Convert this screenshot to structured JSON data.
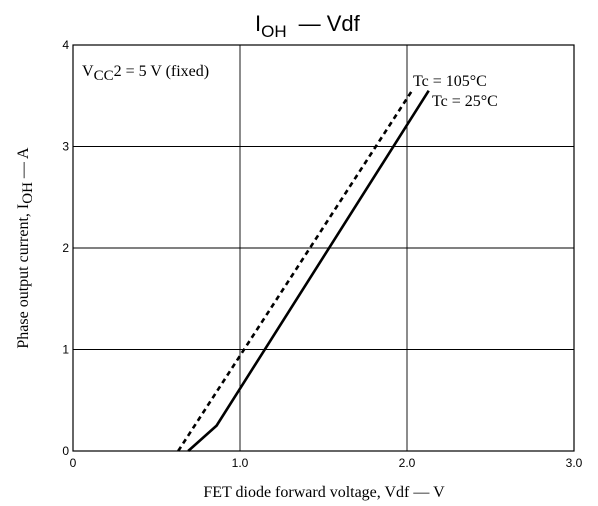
{
  "chart_data": {
    "type": "line",
    "title": {
      "main": "I",
      "sub": "OH",
      "rest": "— Vdf"
    },
    "xlabel": "FET diode forward voltage, Vdf — V",
    "ylabel": {
      "pre": "Phase output current, I",
      "sub": "OH",
      "post": " — A"
    },
    "xlim": [
      0,
      3.0
    ],
    "ylim": [
      0,
      4
    ],
    "grid": true,
    "x_ticks": [
      {
        "value": 0,
        "label": "0"
      },
      {
        "value": 1.0,
        "label": "1.0"
      },
      {
        "value": 2.0,
        "label": "2.0"
      },
      {
        "value": 3.0,
        "label": "3.0"
      }
    ],
    "y_ticks": [
      {
        "value": 0,
        "label": "0"
      },
      {
        "value": 1,
        "label": "1"
      },
      {
        "value": 2,
        "label": "2"
      },
      {
        "value": 3,
        "label": "3"
      },
      {
        "value": 4,
        "label": "4"
      }
    ],
    "condition": {
      "pre": "V",
      "sub": "CC",
      "post": "2 = 5 V (fixed)"
    },
    "series": [
      {
        "name": "Tc = 105°C",
        "style": "dashed",
        "points": [
          [
            0.63,
            0
          ],
          [
            2.03,
            3.55
          ]
        ]
      },
      {
        "name": "Tc = 25°C",
        "style": "solid",
        "points": [
          [
            0.69,
            0
          ],
          [
            0.86,
            0.25
          ],
          [
            2.13,
            3.55
          ]
        ]
      }
    ],
    "line_color": "#000000"
  }
}
